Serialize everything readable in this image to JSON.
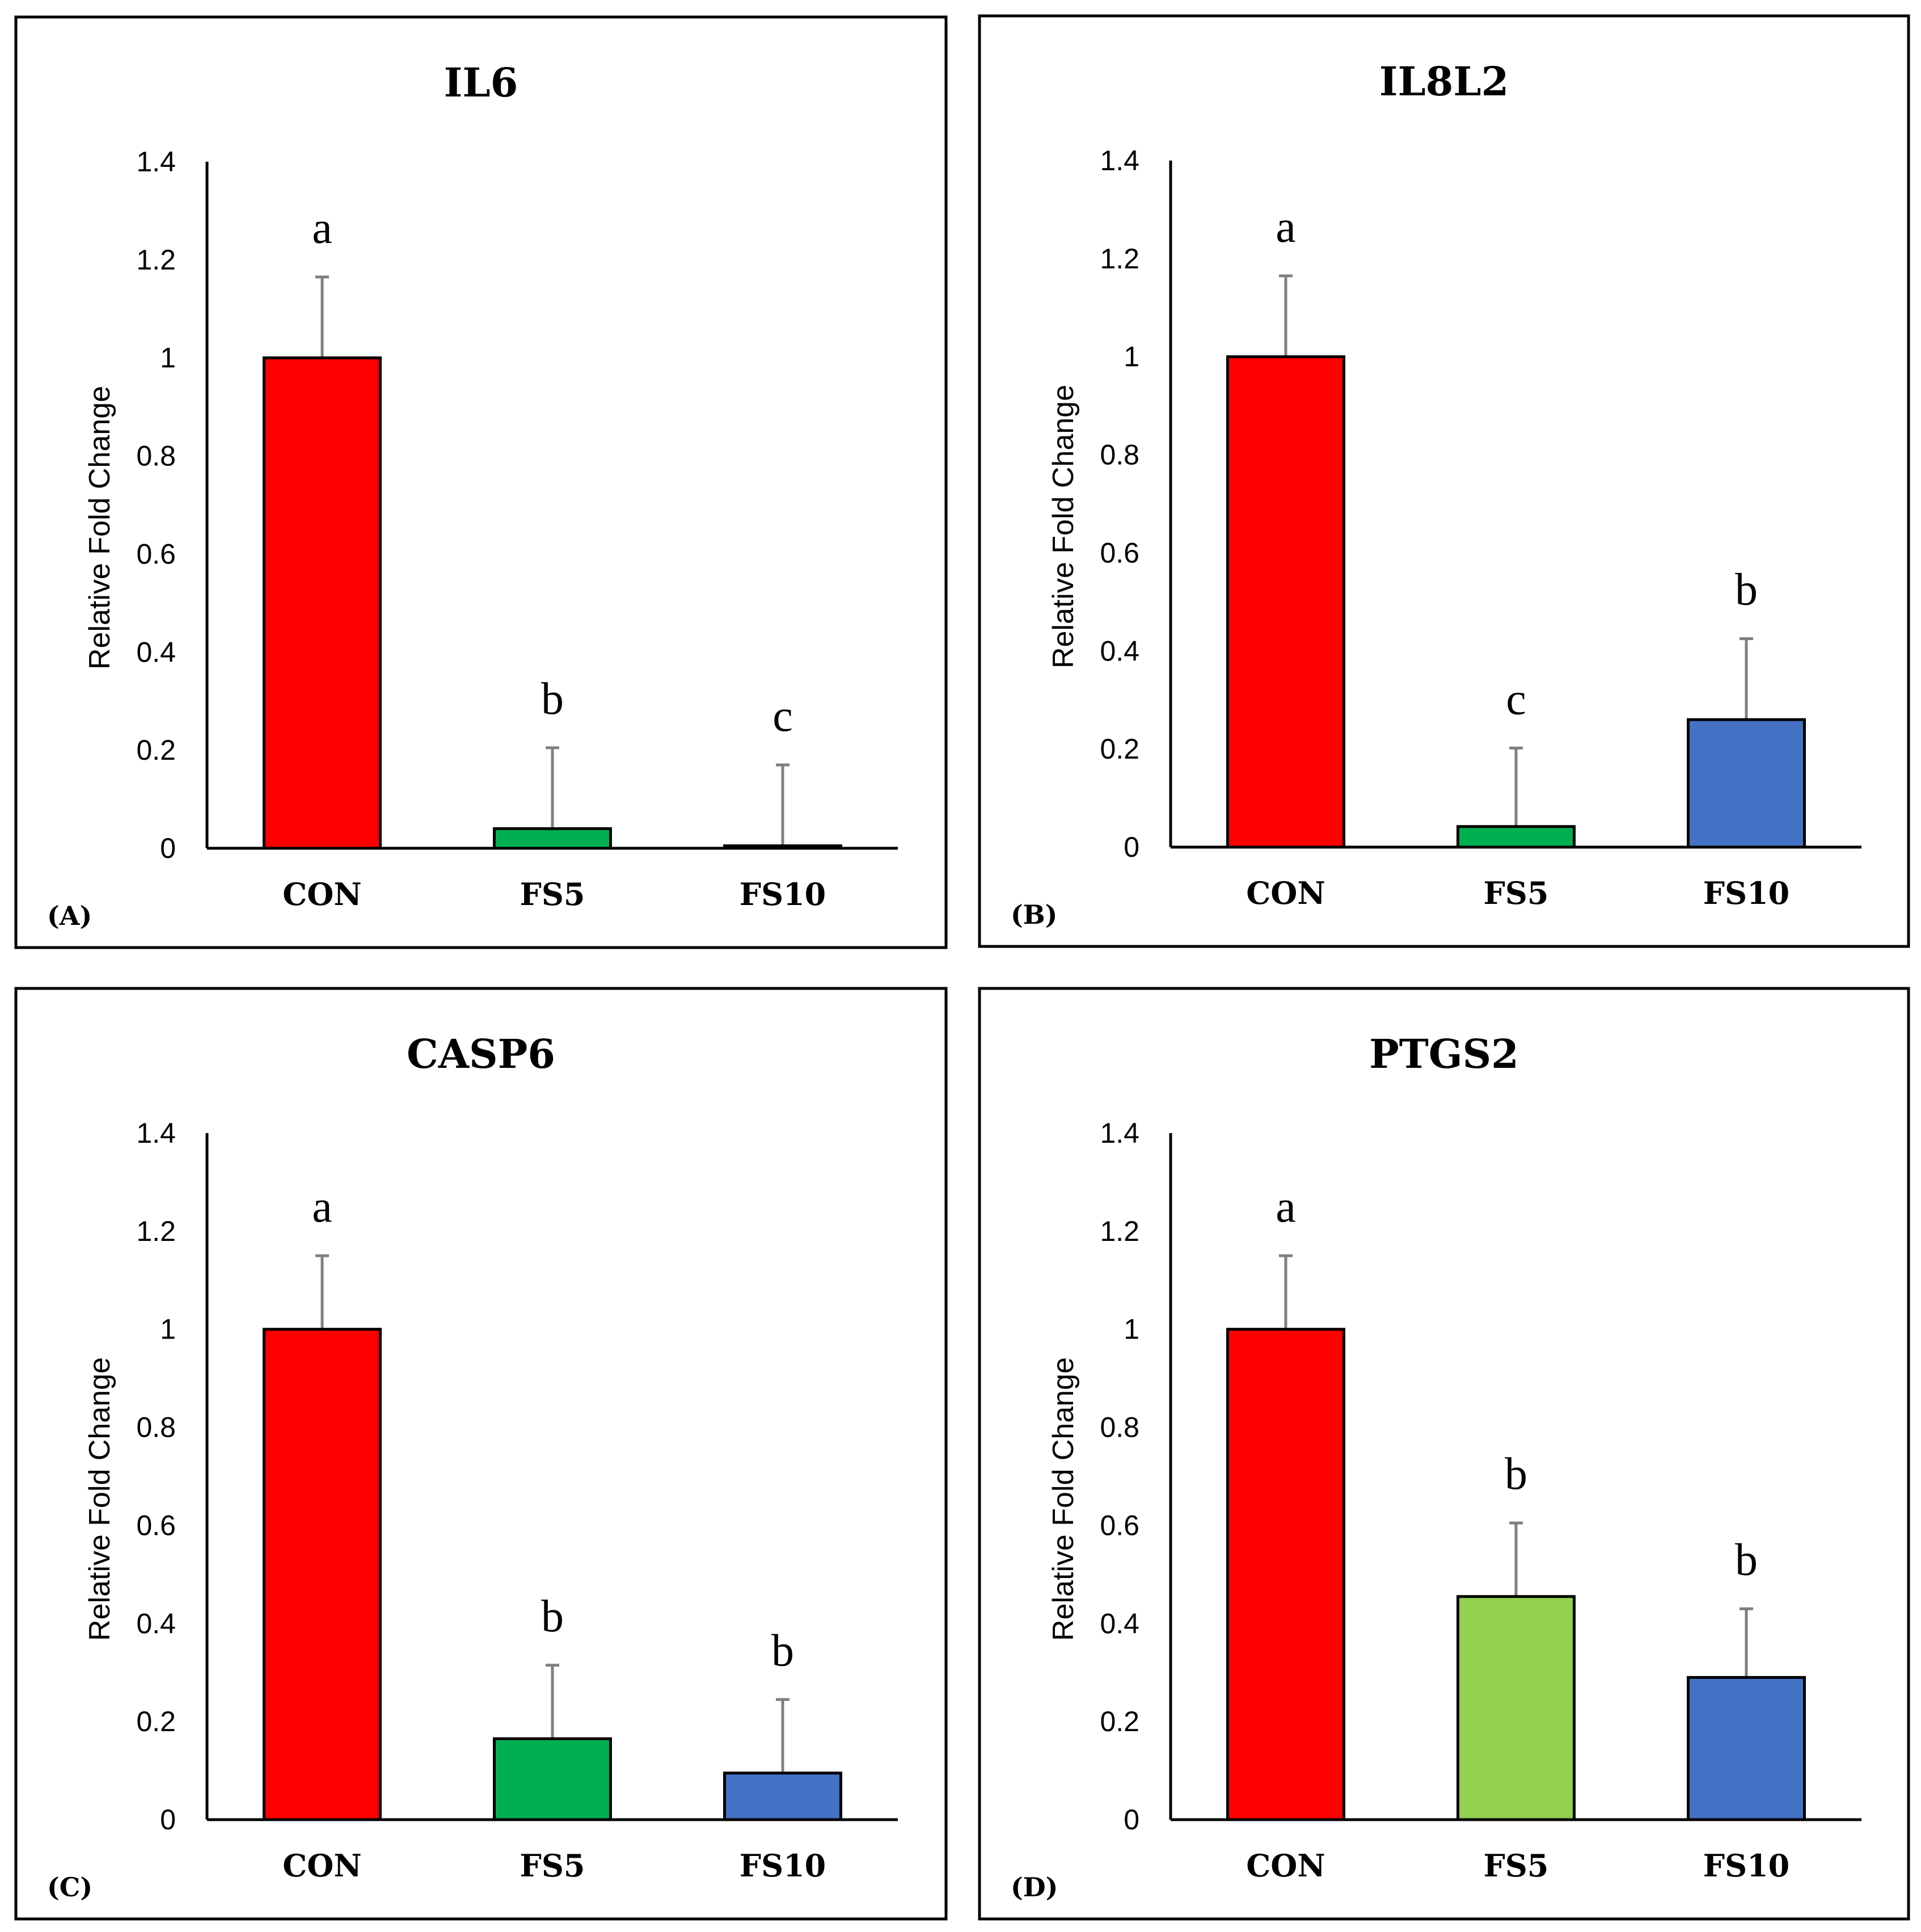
{
  "chart_data": [
    {
      "type": "bar",
      "panel_label": "(A)",
      "title": "IL6",
      "ylabel": "Relative Fold Change",
      "xlabel": "",
      "ylim": [
        0,
        1.4
      ],
      "yticks": [
        "0",
        "0.2",
        "0.4",
        "0.6",
        "0.8",
        "1",
        "1.2",
        "1.4"
      ],
      "categories": [
        "CON",
        "FS5",
        "FS10"
      ],
      "values": [
        1.0,
        0.04,
        0.005
      ],
      "errors": [
        0.165,
        0.165,
        0.165
      ],
      "letters": [
        "a",
        "b",
        "c"
      ],
      "colors": [
        "#ff0000",
        "#00b050",
        "#4472c4"
      ]
    },
    {
      "type": "bar",
      "panel_label": "(B)",
      "title": "IL8L2",
      "ylabel": "Relative Fold Change",
      "xlabel": "",
      "ylim": [
        0,
        1.4
      ],
      "yticks": [
        "0",
        "0.2",
        "0.4",
        "0.6",
        "0.8",
        "1",
        "1.2",
        "1.4"
      ],
      "categories": [
        "CON",
        "FS5",
        "FS10"
      ],
      "values": [
        1.0,
        0.042,
        0.26
      ],
      "errors": [
        0.165,
        0.16,
        0.165
      ],
      "letters": [
        "a",
        "c",
        "b"
      ],
      "colors": [
        "#ff0000",
        "#00b050",
        "#4472c4"
      ]
    },
    {
      "type": "bar",
      "panel_label": "(C)",
      "title": "CASP6",
      "ylabel": "Relative Fold Change",
      "xlabel": "",
      "ylim": [
        0,
        1.4
      ],
      "yticks": [
        "0",
        "0.2",
        "0.4",
        "0.6",
        "0.8",
        "1",
        "1.2",
        "1.4"
      ],
      "categories": [
        "CON",
        "FS5",
        "FS10"
      ],
      "values": [
        1.0,
        0.165,
        0.095
      ],
      "errors": [
        0.15,
        0.15,
        0.15
      ],
      "letters": [
        "a",
        "b",
        "b"
      ],
      "colors": [
        "#ff0000",
        "#00b050",
        "#4472c4"
      ]
    },
    {
      "type": "bar",
      "panel_label": "(D)",
      "title": "PTGS2",
      "ylabel": "Relative Fold Change",
      "xlabel": "",
      "ylim": [
        0,
        1.4
      ],
      "yticks": [
        "0",
        "0.2",
        "0.4",
        "0.6",
        "0.8",
        "1",
        "1.2",
        "1.4"
      ],
      "categories": [
        "CON",
        "FS5",
        "FS10"
      ],
      "values": [
        1.0,
        0.455,
        0.29
      ],
      "errors": [
        0.15,
        0.15,
        0.14
      ],
      "letters": [
        "a",
        "b",
        "b"
      ],
      "colors": [
        "#ff0000",
        "#92d050",
        "#4472c4"
      ]
    }
  ]
}
